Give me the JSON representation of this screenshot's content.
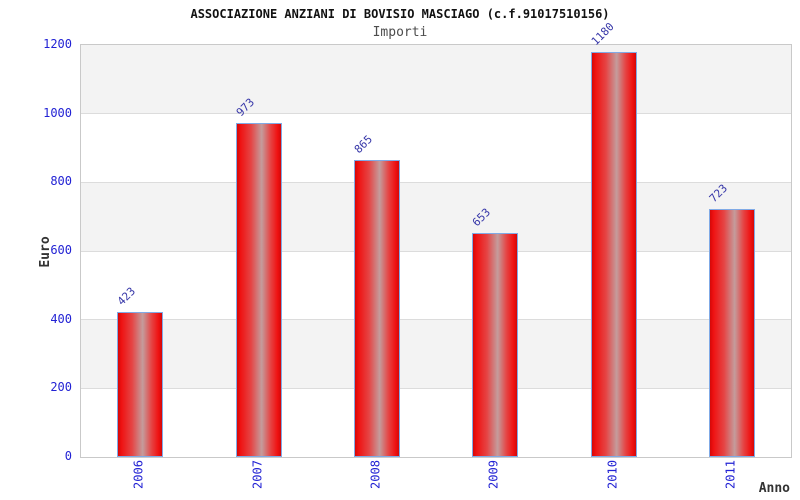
{
  "chart_data": {
    "type": "bar",
    "title": "ASSOCIAZIONE ANZIANI DI BOVISIO MASCIAGO (c.f.91017510156)",
    "subtitle": "Importi",
    "xlabel": "Anno",
    "ylabel": "Euro",
    "categories": [
      "2006",
      "2007",
      "2008",
      "2009",
      "2010",
      "2011"
    ],
    "values": [
      423,
      973,
      865,
      653,
      1180,
      723
    ],
    "ylim": [
      0,
      1200
    ],
    "yticks": [
      0,
      200,
      400,
      600,
      800,
      1000,
      1200
    ],
    "grid": "alternating horizontal bands every 200, gray over white",
    "legend": "none",
    "bar_labels_rotation_deg": -45,
    "x_tick_rotation_deg": -90,
    "colors": {
      "bar_fill": "#ee1111",
      "bar_center_highlight": "#c49c9c",
      "bar_border": "#80aae6",
      "tick_label_blue": "#2222d4",
      "value_label_blue": "#3636a8",
      "band_gray": "#f3f3f3",
      "band_white": "#ffffff",
      "gridline": "#dcdcdc",
      "plot_border": "#c9c9c9",
      "title_color": "#111111",
      "subtitle_color": "#4d4d4d",
      "axis_title_color": "#333333",
      "background": "#ffffff"
    }
  }
}
